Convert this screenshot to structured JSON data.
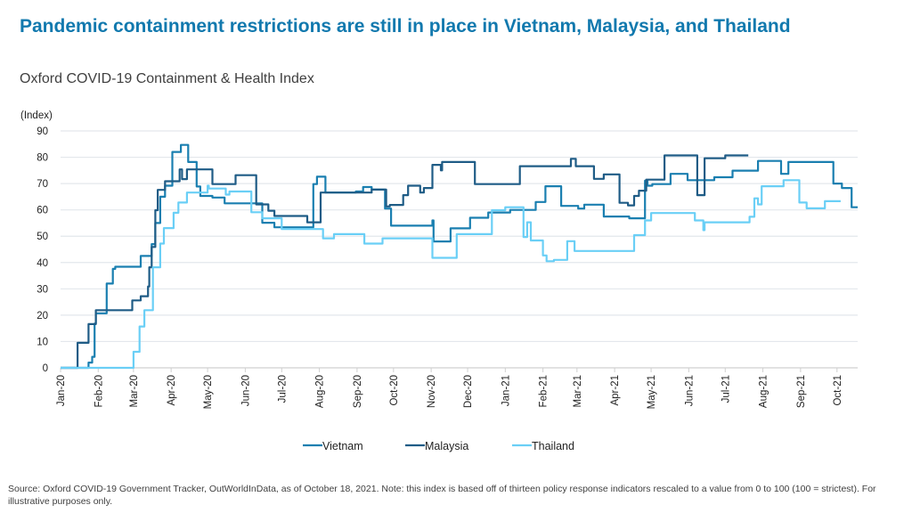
{
  "title": "Pandemic containment restrictions are still in place in Vietnam, Malaysia, and Thailand",
  "subtitle": "Oxford COVID-19 Containment & Health Index",
  "footer": "Source: Oxford COVID-19 Government Tracker, OutWorldInData, as of October 18, 2021. Note: this index is based off of thirteen policy response indicators rescaled to a value from 0 to 100 (100 = strictest). For illustrative purposes only.",
  "chart_data": {
    "type": "line",
    "step": true,
    "ylabel": "(Index)",
    "ylim": [
      0,
      90
    ],
    "yticks": [
      0,
      10,
      20,
      30,
      40,
      50,
      60,
      70,
      80,
      90
    ],
    "xlim": [
      "2020-01-01",
      "2021-10-18"
    ],
    "xtick_labels": [
      "Jan-20",
      "Feb-20",
      "Mar-20",
      "Apr-20",
      "May-20",
      "Jun-20",
      "Jul-20",
      "Aug-20",
      "Sep-20",
      "Oct-20",
      "Nov-20",
      "Dec-20",
      "Jan-21",
      "Feb-21",
      "Mar-21",
      "Apr-21",
      "May-21",
      "Jun-21",
      "Jul-21",
      "Aug-21",
      "Sep-21",
      "Oct-21"
    ],
    "grid": true,
    "legend_placement": "bottom",
    "series": [
      {
        "name": "Vietnam",
        "color": "#1a7fb0",
        "points": [
          [
            "2020-01-01",
            0
          ],
          [
            "2020-01-24",
            2
          ],
          [
            "2020-01-27",
            4.2
          ],
          [
            "2020-01-29",
            16.8
          ],
          [
            "2020-01-30",
            20.7
          ],
          [
            "2020-02-08",
            32
          ],
          [
            "2020-02-13",
            37.6
          ],
          [
            "2020-02-15",
            38.4
          ],
          [
            "2020-03-07",
            42.5
          ],
          [
            "2020-03-16",
            47
          ],
          [
            "2020-03-19",
            55
          ],
          [
            "2020-03-23",
            65
          ],
          [
            "2020-03-27",
            69.2
          ],
          [
            "2020-04-02",
            82
          ],
          [
            "2020-04-09",
            84.7
          ],
          [
            "2020-04-15",
            78.2
          ],
          [
            "2020-04-22",
            68.9
          ],
          [
            "2020-04-25",
            65.3
          ],
          [
            "2020-05-05",
            64.7
          ],
          [
            "2020-05-15",
            62.5
          ],
          [
            "2020-06-15",
            55.1
          ],
          [
            "2020-06-25",
            53.4
          ],
          [
            "2020-07-27",
            69.8
          ],
          [
            "2020-07-30",
            72.6
          ],
          [
            "2020-08-06",
            66.6
          ],
          [
            "2020-08-31",
            67
          ],
          [
            "2020-09-06",
            68.7
          ],
          [
            "2020-09-13",
            67.7
          ],
          [
            "2020-09-24",
            60.5
          ],
          [
            "2020-09-29",
            54
          ],
          [
            "2020-11-02",
            56
          ],
          [
            "2020-11-03",
            48
          ],
          [
            "2020-11-17",
            53
          ],
          [
            "2020-12-03",
            57
          ],
          [
            "2020-12-18",
            59
          ],
          [
            "2021-01-05",
            60
          ],
          [
            "2021-01-26",
            63
          ],
          [
            "2021-02-03",
            69
          ],
          [
            "2021-02-16",
            61.5
          ],
          [
            "2021-03-02",
            60.5
          ],
          [
            "2021-03-07",
            62
          ],
          [
            "2021-03-23",
            57.5
          ],
          [
            "2021-04-13",
            56.8
          ],
          [
            "2021-04-26",
            71.1
          ],
          [
            "2021-04-28",
            69.2
          ],
          [
            "2021-05-02",
            69.8
          ],
          [
            "2021-05-17",
            73.7
          ],
          [
            "2021-05-31",
            71.3
          ],
          [
            "2021-06-22",
            72.4
          ],
          [
            "2021-07-07",
            74.9
          ],
          [
            "2021-07-28",
            78.6
          ],
          [
            "2021-08-16",
            73.7
          ],
          [
            "2021-08-22",
            78.2
          ],
          [
            "2021-09-28",
            70
          ],
          [
            "2021-10-05",
            68.3
          ],
          [
            "2021-10-13",
            61
          ],
          [
            "2021-10-18",
            61
          ]
        ]
      },
      {
        "name": "Malaysia",
        "color": "#1f5c86",
        "points": [
          [
            "2020-01-01",
            0
          ],
          [
            "2020-01-15",
            9.5
          ],
          [
            "2020-01-24",
            16.6
          ],
          [
            "2020-01-30",
            21.9
          ],
          [
            "2020-02-29",
            25.6
          ],
          [
            "2020-03-07",
            27.2
          ],
          [
            "2020-03-13",
            30.9
          ],
          [
            "2020-03-14",
            38.2
          ],
          [
            "2020-03-16",
            45.9
          ],
          [
            "2020-03-19",
            59.9
          ],
          [
            "2020-03-21",
            67.6
          ],
          [
            "2020-03-27",
            70.9
          ],
          [
            "2020-04-08",
            75.4
          ],
          [
            "2020-04-10",
            71.7
          ],
          [
            "2020-04-14",
            75.4
          ],
          [
            "2020-05-05",
            69.8
          ],
          [
            "2020-05-24",
            73.2
          ],
          [
            "2020-06-10",
            62.1
          ],
          [
            "2020-06-20",
            59.7
          ],
          [
            "2020-06-25",
            57.7
          ],
          [
            "2020-07-22",
            55.3
          ],
          [
            "2020-08-02",
            66.6
          ],
          [
            "2020-09-13",
            67.7
          ],
          [
            "2020-09-25",
            61.3
          ],
          [
            "2020-09-28",
            61.9
          ],
          [
            "2020-10-09",
            65.6
          ],
          [
            "2020-10-13",
            69.2
          ],
          [
            "2020-10-23",
            66.6
          ],
          [
            "2020-10-26",
            68.3
          ],
          [
            "2020-11-02",
            77.1
          ],
          [
            "2020-11-09",
            75
          ],
          [
            "2020-11-10",
            78.2
          ],
          [
            "2020-12-07",
            69.8
          ],
          [
            "2021-01-13",
            76.6
          ],
          [
            "2021-02-24",
            79.4
          ],
          [
            "2021-02-28",
            76.6
          ],
          [
            "2021-03-15",
            71.8
          ],
          [
            "2021-03-23",
            73.5
          ],
          [
            "2021-04-05",
            62.7
          ],
          [
            "2021-04-12",
            61.7
          ],
          [
            "2021-04-17",
            65.3
          ],
          [
            "2021-04-21",
            67.3
          ],
          [
            "2021-04-27",
            71.5
          ],
          [
            "2021-05-12",
            80.7
          ],
          [
            "2021-06-08",
            65.6
          ],
          [
            "2021-06-14",
            79.6
          ],
          [
            "2021-07-01",
            80.7
          ],
          [
            "2021-07-20",
            80.7
          ]
        ]
      },
      {
        "name": "Thailand",
        "color": "#6acff6",
        "points": [
          [
            "2020-01-01",
            0
          ],
          [
            "2020-03-01",
            6.1
          ],
          [
            "2020-03-06",
            15.7
          ],
          [
            "2020-03-10",
            21.9
          ],
          [
            "2020-03-17",
            38.2
          ],
          [
            "2020-03-23",
            47.2
          ],
          [
            "2020-03-26",
            53.1
          ],
          [
            "2020-04-03",
            58.9
          ],
          [
            "2020-04-07",
            62.8
          ],
          [
            "2020-04-14",
            66.6
          ],
          [
            "2020-05-01",
            69.2
          ],
          [
            "2020-05-02",
            68.1
          ],
          [
            "2020-05-16",
            65.8
          ],
          [
            "2020-05-19",
            67
          ],
          [
            "2020-06-06",
            59.1
          ],
          [
            "2020-06-15",
            56.8
          ],
          [
            "2020-07-01",
            52.7
          ],
          [
            "2020-08-04",
            49.2
          ],
          [
            "2020-08-13",
            50.8
          ],
          [
            "2020-09-07",
            47.2
          ],
          [
            "2020-09-22",
            49.2
          ],
          [
            "2020-11-02",
            41.8
          ],
          [
            "2020-11-22",
            50.8
          ],
          [
            "2020-12-21",
            59.9
          ],
          [
            "2021-01-01",
            61
          ],
          [
            "2021-01-16",
            49.7
          ],
          [
            "2021-01-19",
            55.3
          ],
          [
            "2021-01-22",
            48.4
          ],
          [
            "2021-02-01",
            42.7
          ],
          [
            "2021-02-04",
            40.5
          ],
          [
            "2021-02-10",
            41
          ],
          [
            "2021-02-21",
            48.1
          ],
          [
            "2021-02-27",
            44.4
          ],
          [
            "2021-04-17",
            50.4
          ],
          [
            "2021-04-26",
            56
          ],
          [
            "2021-05-01",
            58.8
          ],
          [
            "2021-06-06",
            56
          ],
          [
            "2021-06-13",
            52.3
          ],
          [
            "2021-06-14",
            55.3
          ],
          [
            "2021-07-21",
            57.4
          ],
          [
            "2021-07-25",
            64.4
          ],
          [
            "2021-07-28",
            62.1
          ],
          [
            "2021-07-31",
            69
          ],
          [
            "2021-08-18",
            71.3
          ],
          [
            "2021-08-31",
            62.8
          ],
          [
            "2021-09-06",
            60.6
          ],
          [
            "2021-09-21",
            63.3
          ],
          [
            "2021-10-04",
            63.3
          ]
        ]
      }
    ]
  }
}
